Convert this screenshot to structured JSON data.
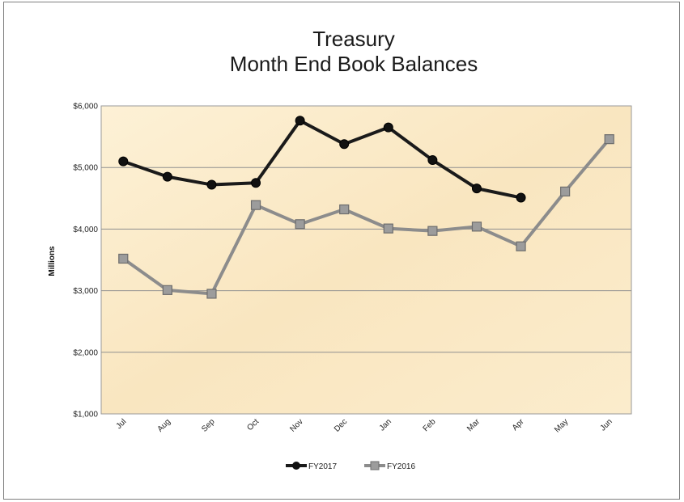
{
  "chart_data": {
    "type": "line",
    "title": "Treasury",
    "subtitle": "Month End Book Balances",
    "xlabel": "",
    "ylabel": "Millions",
    "categories": [
      "Jul",
      "Aug",
      "Sep",
      "Oct",
      "Nov",
      "Dec",
      "Jan",
      "Feb",
      "Mar",
      "Apr",
      "May",
      "Jun"
    ],
    "ylim": [
      1000,
      6000
    ],
    "yticks": [
      1000,
      2000,
      3000,
      4000,
      5000,
      6000
    ],
    "ytick_labels": [
      "$1,000",
      "$2,000",
      "$3,000",
      "$4,000",
      "$5,000",
      "$6,000"
    ],
    "grid": true,
    "legend_position": "bottom",
    "series": [
      {
        "name": "FY2017",
        "color": "#1a1a1a",
        "marker": "circle",
        "values": [
          5100,
          4850,
          4720,
          4750,
          5760,
          5380,
          5650,
          5120,
          4660,
          4510,
          null,
          null
        ]
      },
      {
        "name": "FY2016",
        "color": "#8c8c8c",
        "marker": "square",
        "values": [
          3520,
          3010,
          2950,
          4390,
          4080,
          4320,
          4010,
          3970,
          4040,
          3720,
          4610,
          5460
        ]
      }
    ],
    "plot_background": "#fbeccb"
  }
}
